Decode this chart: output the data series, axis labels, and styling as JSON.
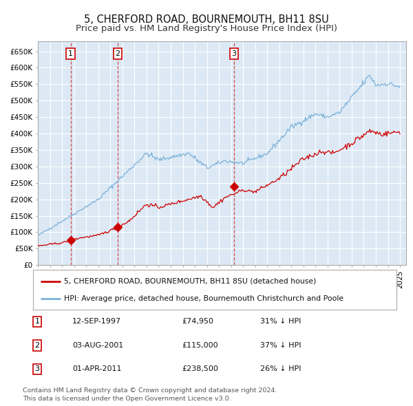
{
  "title": "5, CHERFORD ROAD, BOURNEMOUTH, BH11 8SU",
  "subtitle": "Price paid vs. HM Land Registry's House Price Index (HPI)",
  "title_fontsize": 10.5,
  "subtitle_fontsize": 9.5,
  "background_color": "#ffffff",
  "plot_bg_color": "#dce9f5",
  "grid_color": "#ffffff",
  "hpi_line_color": "#7ab0d8",
  "price_line_color": "#cc0000",
  "marker_color": "#cc0000",
  "vline_colors": [
    "#cc3333",
    "#cc3333",
    "#cc3333"
  ],
  "ylim": [
    0,
    680000
  ],
  "yticks": [
    0,
    50000,
    100000,
    150000,
    200000,
    250000,
    300000,
    350000,
    400000,
    450000,
    500000,
    550000,
    600000,
    650000
  ],
  "sale1_year": 1997.7,
  "sale1_price": 74950,
  "sale2_year": 2001.6,
  "sale2_price": 115000,
  "sale3_year": 2011.25,
  "sale3_price": 238500,
  "legend_line1": "5, CHERFORD ROAD, BOURNEMOUTH, BH11 8SU (detached house)",
  "legend_line2": "HPI: Average price, detached house, Bournemouth Christchurch and Poole",
  "table_entries": [
    {
      "num": "1",
      "date": "12-SEP-1997",
      "price": "£74,950",
      "change": "31% ↓ HPI"
    },
    {
      "num": "2",
      "date": "03-AUG-2001",
      "price": "£115,000",
      "change": "37% ↓ HPI"
    },
    {
      "num": "3",
      "date": "01-APR-2011",
      "price": "£238,500",
      "change": "26% ↓ HPI"
    }
  ],
  "footer_line1": "Contains HM Land Registry data © Crown copyright and database right 2024.",
  "footer_line2": "This data is licensed under the Open Government Licence v3.0."
}
